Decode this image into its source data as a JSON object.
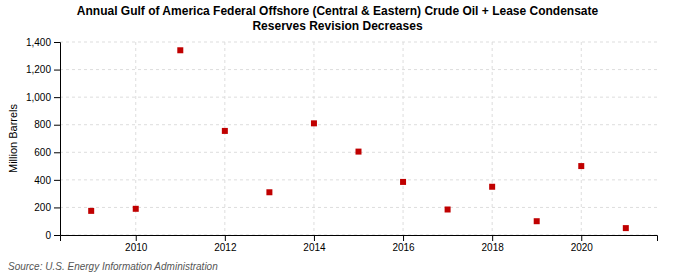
{
  "chart_data": {
    "type": "scatter",
    "title": "Annual Gulf of America Federal Offshore (Central & Eastern) Crude Oil + Lease Condensate\nReserves Revision Decreases",
    "ylabel": "Million Barrels",
    "source": "Source: U.S. Energy Information Administration",
    "x": [
      2009,
      2010,
      2011,
      2012,
      2013,
      2014,
      2015,
      2016,
      2017,
      2018,
      2019,
      2020,
      2021
    ],
    "values": [
      175,
      190,
      1340,
      755,
      310,
      810,
      605,
      385,
      185,
      350,
      100,
      500,
      50
    ],
    "color": "#c00000",
    "marker": "square",
    "grid": true,
    "xlim": [
      2008.3,
      2021.7
    ],
    "xticks": [
      2010,
      2012,
      2014,
      2016,
      2018,
      2020
    ],
    "ylim": [
      0,
      1400
    ],
    "yticks": [
      0,
      200,
      400,
      600,
      800,
      {
        "value": 1000,
        "label": "1,000"
      },
      {
        "value": 1200,
        "label": "1,200"
      },
      {
        "value": 1400,
        "label": "1,400"
      }
    ]
  }
}
